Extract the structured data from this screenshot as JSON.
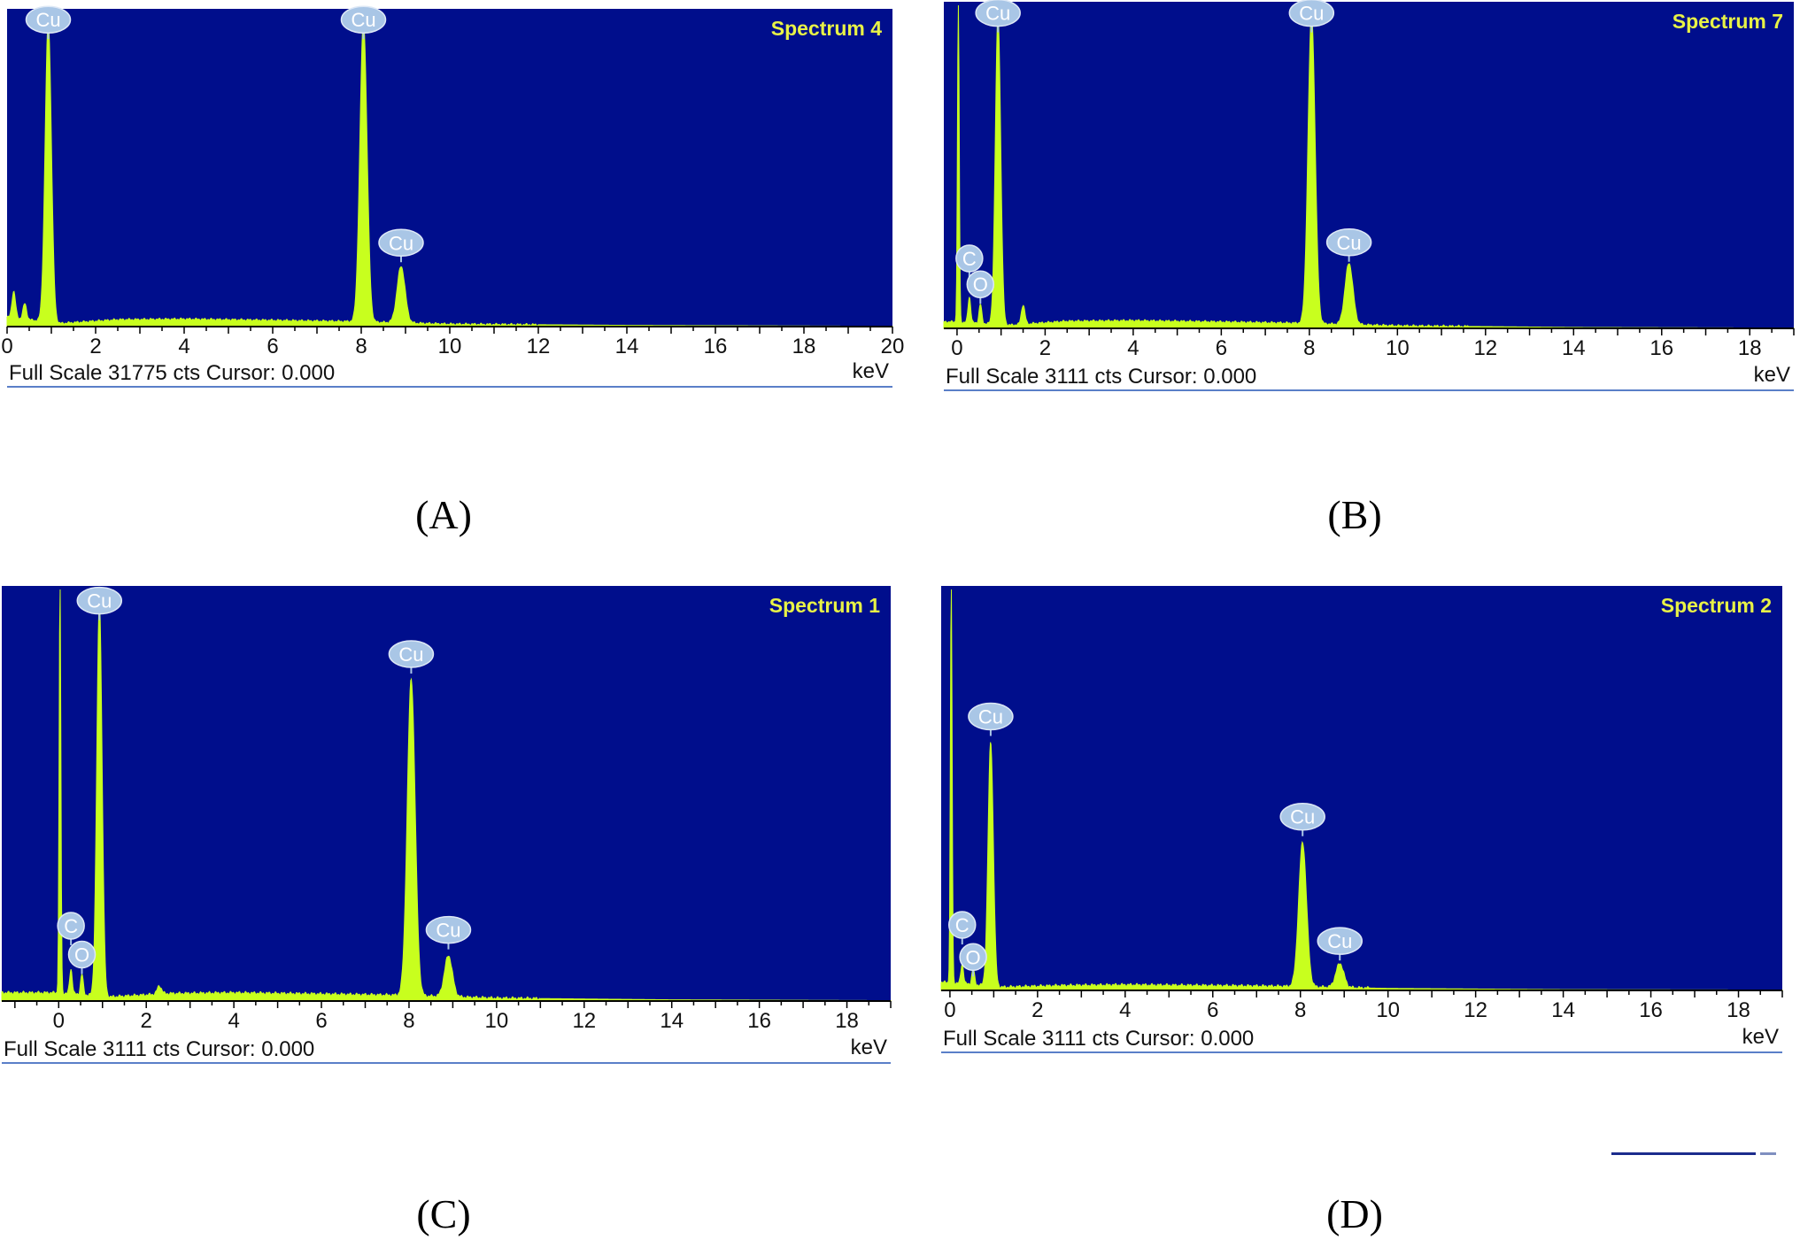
{
  "colors": {
    "plot_background": "#000e8c",
    "spectrum_fill": "#c8ff1e",
    "label_fill": "#a9c6e6",
    "label_text": "#ffffff",
    "title_text": "#e8f246",
    "frame": "#5a7fc8"
  },
  "chart_data": [
    {
      "panel": "(A)",
      "type": "area",
      "title": "Spectrum 4",
      "xlabel": "keV",
      "footer": "Full Scale 31775 cts Cursor: 0.000",
      "xlim": [
        0,
        20
      ],
      "ylim": [
        0,
        1
      ],
      "xticks": [
        0,
        2,
        4,
        6,
        8,
        10,
        12,
        14,
        16,
        18,
        20
      ],
      "peaks": [
        {
          "element": "Cu",
          "x": 0.93,
          "y": 0.96,
          "width": 0.07
        },
        {
          "element": "Cu",
          "x": 8.05,
          "y": 0.96,
          "width": 0.08
        },
        {
          "element": "Cu",
          "x": 8.9,
          "y": 0.18,
          "width": 0.09
        }
      ],
      "minor_peaks": [
        {
          "x": 0.15,
          "y": 0.085,
          "width": 0.04
        },
        {
          "x": 0.4,
          "y": 0.05,
          "width": 0.04
        }
      ],
      "background": [
        [
          0,
          0.03
        ],
        [
          1.2,
          0.01
        ],
        [
          2.5,
          0.022
        ],
        [
          4,
          0.024
        ],
        [
          6,
          0.02
        ],
        [
          7.8,
          0.016
        ],
        [
          10,
          0.008
        ],
        [
          14,
          0.004
        ],
        [
          20,
          0.001
        ]
      ],
      "labels": [
        {
          "text": "Cu",
          "x": 0.93,
          "y": 0.96
        },
        {
          "text": "Cu",
          "x": 8.05,
          "y": 0.96
        },
        {
          "text": "Cu",
          "x": 8.9,
          "y": 0.25
        }
      ]
    },
    {
      "panel": "(B)",
      "type": "area",
      "title": "Spectrum 7",
      "xlabel": "keV",
      "footer": "Full Scale 3111 cts Cursor: 0.000",
      "xlim": [
        -0.3,
        19
      ],
      "ylim": [
        0,
        1
      ],
      "xticks": [
        0,
        2,
        4,
        6,
        8,
        10,
        12,
        14,
        16,
        18
      ],
      "peaks": [
        {
          "element": "Cu",
          "x": 0.93,
          "y": 0.96,
          "width": 0.06
        },
        {
          "element": "Cu",
          "x": 8.05,
          "y": 0.96,
          "width": 0.08
        },
        {
          "element": "Cu",
          "x": 8.9,
          "y": 0.19,
          "width": 0.09
        }
      ],
      "minor_peaks": [
        {
          "x": 0.03,
          "y": 1.0,
          "width": 0.02
        },
        {
          "x": 0.28,
          "y": 0.08,
          "width": 0.03
        },
        {
          "x": 0.53,
          "y": 0.06,
          "width": 0.03
        },
        {
          "x": 1.5,
          "y": 0.06,
          "width": 0.04
        }
      ],
      "background": [
        [
          0,
          0.02
        ],
        [
          1.2,
          0.01
        ],
        [
          2.5,
          0.022
        ],
        [
          4,
          0.024
        ],
        [
          6,
          0.02
        ],
        [
          7.8,
          0.016
        ],
        [
          10,
          0.008
        ],
        [
          14,
          0.003
        ],
        [
          19,
          0.001
        ]
      ],
      "labels": [
        {
          "text": "C",
          "x": 0.28,
          "y": 0.2
        },
        {
          "text": "O",
          "x": 0.53,
          "y": 0.12
        },
        {
          "text": "Cu",
          "x": 0.93,
          "y": 0.96
        },
        {
          "text": "Cu",
          "x": 8.05,
          "y": 0.96
        },
        {
          "text": "Cu",
          "x": 8.9,
          "y": 0.25
        }
      ]
    },
    {
      "panel": "(C)",
      "type": "area",
      "title": "Spectrum 1",
      "xlabel": "keV",
      "footer": "Full Scale 3111 cts Cursor: 0.000",
      "xlim": [
        -1.3,
        19
      ],
      "ylim": [
        0,
        1
      ],
      "xticks": [
        0,
        2,
        4,
        6,
        8,
        10,
        12,
        14,
        16,
        18
      ],
      "peaks": [
        {
          "element": "Cu",
          "x": 0.93,
          "y": 0.96,
          "width": 0.06
        },
        {
          "element": "Cu",
          "x": 8.05,
          "y": 0.77,
          "width": 0.09
        },
        {
          "element": "Cu",
          "x": 8.9,
          "y": 0.1,
          "width": 0.09
        }
      ],
      "minor_peaks": [
        {
          "x": 0.03,
          "y": 1.0,
          "width": 0.02
        },
        {
          "x": 0.28,
          "y": 0.06,
          "width": 0.03
        },
        {
          "x": 0.53,
          "y": 0.05,
          "width": 0.03
        },
        {
          "x": 2.3,
          "y": 0.02,
          "width": 0.05
        }
      ],
      "background": [
        [
          0,
          0.02
        ],
        [
          1.2,
          0.01
        ],
        [
          2.5,
          0.018
        ],
        [
          4,
          0.02
        ],
        [
          6,
          0.017
        ],
        [
          7.8,
          0.014
        ],
        [
          10,
          0.007
        ],
        [
          14,
          0.003
        ],
        [
          19,
          0.001
        ]
      ],
      "labels": [
        {
          "text": "C",
          "x": 0.28,
          "y": 0.17
        },
        {
          "text": "O",
          "x": 0.53,
          "y": 0.1
        },
        {
          "text": "Cu",
          "x": 0.93,
          "y": 0.96
        },
        {
          "text": "Cu",
          "x": 8.05,
          "y": 0.83
        },
        {
          "text": "Cu",
          "x": 8.9,
          "y": 0.16
        }
      ]
    },
    {
      "panel": "(D)",
      "type": "area",
      "title": "Spectrum 2",
      "xlabel": "keV",
      "footer": "Full Scale 3111 cts Cursor: 0.000",
      "xlim": [
        -0.2,
        19
      ],
      "ylim": [
        0,
        1
      ],
      "xticks": [
        0,
        2,
        4,
        6,
        8,
        10,
        12,
        14,
        16,
        18
      ],
      "peaks": [
        {
          "element": "Cu",
          "x": 0.93,
          "y": 0.61,
          "width": 0.06
        },
        {
          "element": "Cu",
          "x": 8.05,
          "y": 0.36,
          "width": 0.09
        },
        {
          "element": "Cu",
          "x": 8.9,
          "y": 0.06,
          "width": 0.09
        }
      ],
      "minor_peaks": [
        {
          "x": 0.03,
          "y": 1.0,
          "width": 0.02
        },
        {
          "x": 0.28,
          "y": 0.05,
          "width": 0.03
        },
        {
          "x": 0.53,
          "y": 0.04,
          "width": 0.03
        }
      ],
      "background": [
        [
          0,
          0.02
        ],
        [
          1.2,
          0.008
        ],
        [
          2.5,
          0.012
        ],
        [
          4,
          0.014
        ],
        [
          6,
          0.012
        ],
        [
          7.8,
          0.01
        ],
        [
          10,
          0.005
        ],
        [
          14,
          0.002
        ],
        [
          19,
          0.001
        ]
      ],
      "labels": [
        {
          "text": "C",
          "x": 0.28,
          "y": 0.15
        },
        {
          "text": "O",
          "x": 0.53,
          "y": 0.07
        },
        {
          "text": "Cu",
          "x": 0.93,
          "y": 0.67
        },
        {
          "text": "Cu",
          "x": 8.05,
          "y": 0.42
        },
        {
          "text": "Cu",
          "x": 8.9,
          "y": 0.11
        }
      ]
    }
  ]
}
